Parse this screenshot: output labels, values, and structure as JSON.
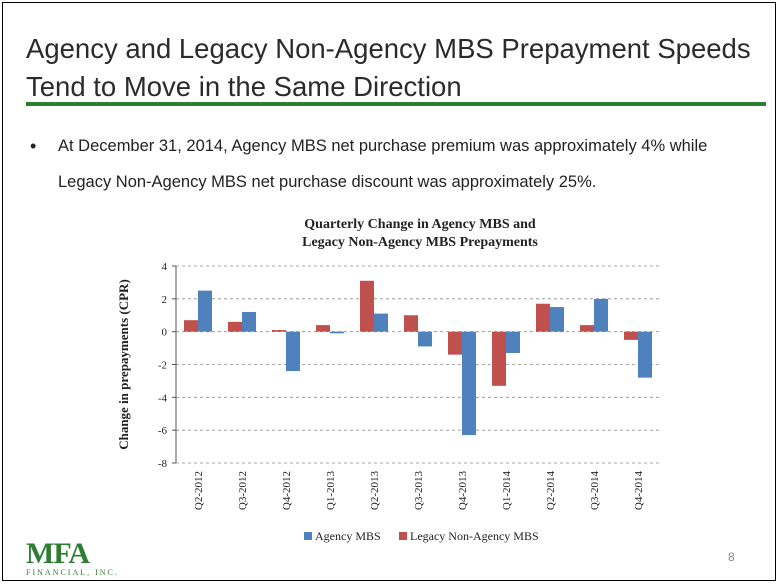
{
  "slide": {
    "title": "Agency and Legacy Non-Agency MBS Prepayment Speeds Tend to Move in the Same Direction",
    "bullet": "At December 31, 2014, Agency MBS net purchase premium was approximately 4% while Legacy Non-Agency MBS net purchase discount was approximately 25%.",
    "bullet_symbol": "•",
    "page_number": "8",
    "logo_main": "MFA",
    "logo_sub": "FINANCIAL, INC."
  },
  "colors": {
    "accent_green": "#2e7d33",
    "agency": "#4f81bd",
    "legacy": "#c0504d"
  },
  "chart_data": {
    "type": "bar",
    "title": "Quarterly Change in Agency MBS  and Legacy Non-Agency MBS  Prepayments",
    "title_lines": [
      "Quarterly Change in Agency MBS  and",
      "Legacy Non-Agency MBS  Prepayments"
    ],
    "xlabel": "",
    "ylabel": "Change in prepayments (CPR)",
    "ylim": [
      -8,
      4
    ],
    "yticks": [
      4,
      2,
      0,
      -2,
      -4,
      -6,
      -8
    ],
    "grid": true,
    "legend_position": "bottom",
    "categories": [
      "Q2-2012",
      "Q3-2012",
      "Q4-2012",
      "Q1-2013",
      "Q2-2013",
      "Q3-2013",
      "Q4-2013",
      "Q1-2014",
      "Q2-2014",
      "Q3-2014",
      "Q4-2014"
    ],
    "series": [
      {
        "name": "Agency MBS",
        "values": [
          2.5,
          1.2,
          -2.4,
          -0.1,
          1.1,
          -0.9,
          -6.3,
          -1.3,
          1.5,
          2.0,
          -2.8
        ]
      },
      {
        "name": "Legacy Non-Agency MBS",
        "values": [
          0.7,
          0.6,
          0.1,
          0.4,
          3.1,
          1.0,
          -1.4,
          -3.3,
          1.7,
          0.4,
          -0.5
        ]
      }
    ]
  }
}
